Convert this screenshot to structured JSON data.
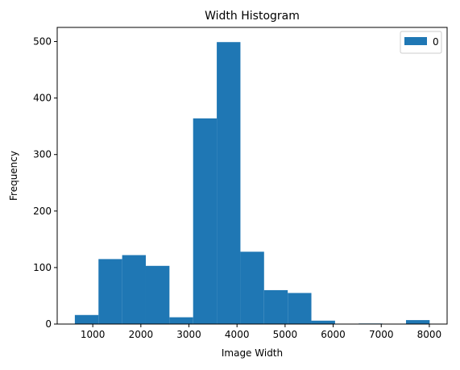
{
  "chart_data": {
    "type": "bar",
    "subtype": "histogram",
    "title": "Width Histogram",
    "xlabel": "Image Width",
    "ylabel": "Frequency",
    "xlim": [
      260,
      8370
    ],
    "ylim": [
      0,
      525
    ],
    "x_ticks": [
      1000,
      2000,
      3000,
      4000,
      5000,
      6000,
      7000,
      8000
    ],
    "y_ticks": [
      0,
      100,
      200,
      300,
      400,
      500
    ],
    "bin_width": 492,
    "bins": [
      {
        "start": 627,
        "end": 1119,
        "count": 16
      },
      {
        "start": 1119,
        "end": 1611,
        "count": 115
      },
      {
        "start": 1611,
        "end": 2103,
        "count": 122
      },
      {
        "start": 2103,
        "end": 2595,
        "count": 103
      },
      {
        "start": 2595,
        "end": 3087,
        "count": 12
      },
      {
        "start": 3087,
        "end": 3579,
        "count": 364
      },
      {
        "start": 3579,
        "end": 4071,
        "count": 499
      },
      {
        "start": 4071,
        "end": 4563,
        "count": 128
      },
      {
        "start": 4563,
        "end": 5055,
        "count": 60
      },
      {
        "start": 5055,
        "end": 5547,
        "count": 55
      },
      {
        "start": 5547,
        "end": 6039,
        "count": 6
      },
      {
        "start": 6039,
        "end": 6531,
        "count": 0
      },
      {
        "start": 6531,
        "end": 7023,
        "count": 1
      },
      {
        "start": 7023,
        "end": 7515,
        "count": 0
      },
      {
        "start": 7515,
        "end": 8007,
        "count": 7
      }
    ],
    "series": [
      {
        "name": "0",
        "color": "#1f77b4"
      }
    ],
    "legend": {
      "position": "top-right",
      "label": "0"
    },
    "grid": false
  }
}
